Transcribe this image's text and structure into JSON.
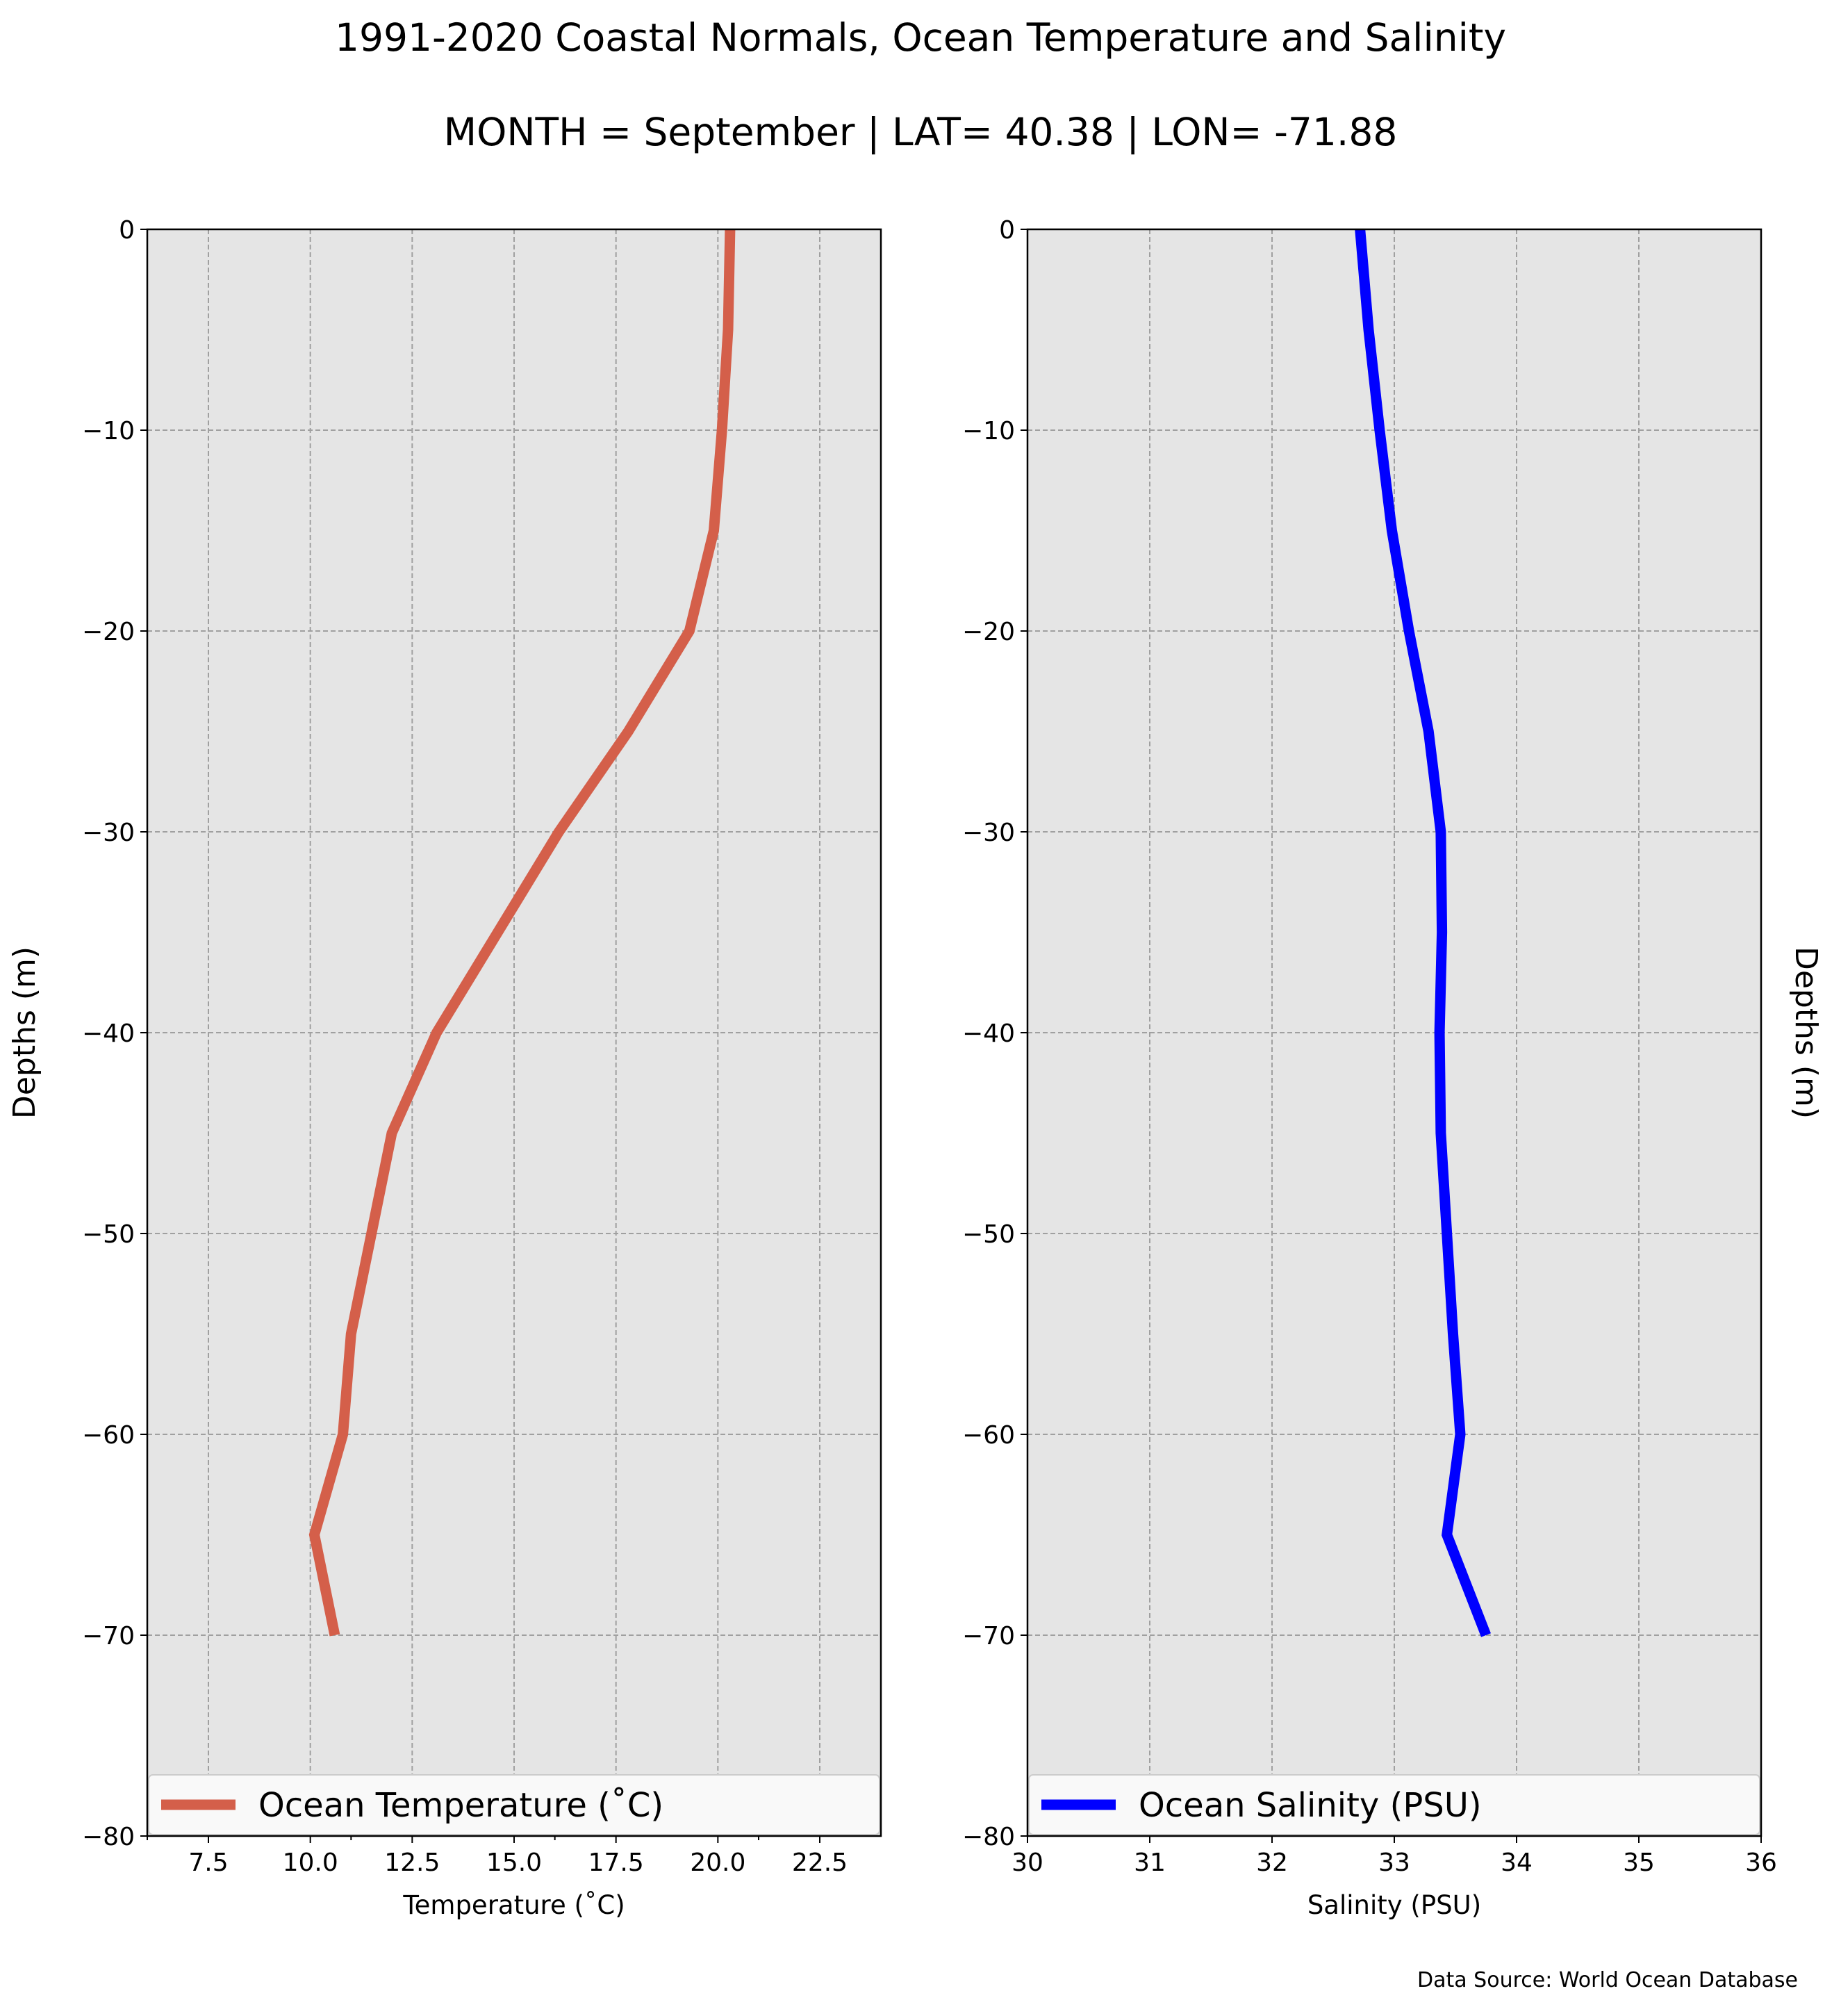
{
  "figure": {
    "title_line1": "1991-2020 Coastal Normals, Ocean Temperature and Salinity",
    "title_line2": "MONTH = September | LAT= 40.38 | LON= -71.88",
    "source": "Data Source: World Ocean Database",
    "background_color": "#e5e5e5",
    "grid_color": "#a0a0a0"
  },
  "chart_data": [
    {
      "type": "line",
      "xlabel": "Temperature (˚C)",
      "ylabel": "Depths (m)",
      "xlim": [
        6.0,
        24.0
      ],
      "ylim": [
        -80,
        0
      ],
      "xticks": [
        7.5,
        10.0,
        12.5,
        15.0,
        17.5,
        20.0,
        22.5
      ],
      "xtick_labels": [
        "7.5",
        "10.0",
        "12.5",
        "15.0",
        "17.5",
        "20.0",
        "22.5"
      ],
      "x_minor_ticks": [
        6.0,
        11.0,
        16.0,
        21.0
      ],
      "yticks": [
        0,
        -10,
        -20,
        -30,
        -40,
        -50,
        -60,
        -70,
        -80
      ],
      "ytick_labels": [
        "0",
        "−10",
        "−20",
        "−30",
        "−40",
        "−50",
        "−60",
        "−70",
        "−80"
      ],
      "ylabel_side": "left",
      "grid": true,
      "legend_position": "bottom",
      "series": [
        {
          "name": "Ocean Temperature (˚C)",
          "color": "#d45f4a",
          "x": [
            20.3,
            20.25,
            20.1,
            19.9,
            19.3,
            17.8,
            16.1,
            14.6,
            13.1,
            12.0,
            11.5,
            11.0,
            10.8,
            10.1,
            10.6
          ],
          "y": [
            0,
            -5,
            -10,
            -15,
            -20,
            -25,
            -30,
            -35,
            -40,
            -45,
            -50,
            -55,
            -60,
            -65,
            -70
          ]
        }
      ]
    },
    {
      "type": "line",
      "xlabel": "Salinity (PSU)",
      "ylabel": "Depths (m)",
      "xlim": [
        30,
        36
      ],
      "ylim": [
        -80,
        0
      ],
      "xticks": [
        30,
        31,
        32,
        33,
        34,
        35,
        36
      ],
      "xtick_labels": [
        "30",
        "31",
        "32",
        "33",
        "34",
        "35",
        "36"
      ],
      "yticks": [
        0,
        -10,
        -20,
        -30,
        -40,
        -50,
        -60,
        -70,
        -80
      ],
      "ytick_labels": [
        "0",
        "−10",
        "−20",
        "−30",
        "−40",
        "−50",
        "−60",
        "−70",
        "−80"
      ],
      "ylabel_side": "right",
      "grid": true,
      "legend_position": "bottom",
      "series": [
        {
          "name": "Ocean Salinity (PSU)",
          "color": "#0000ff",
          "x": [
            32.72,
            32.79,
            32.88,
            32.98,
            33.12,
            33.28,
            33.38,
            33.39,
            33.37,
            33.38,
            33.43,
            33.48,
            33.54,
            33.43,
            33.75
          ],
          "y": [
            0,
            -5,
            -10,
            -15,
            -20,
            -25,
            -30,
            -35,
            -40,
            -45,
            -50,
            -55,
            -60,
            -65,
            -70
          ]
        }
      ]
    }
  ]
}
